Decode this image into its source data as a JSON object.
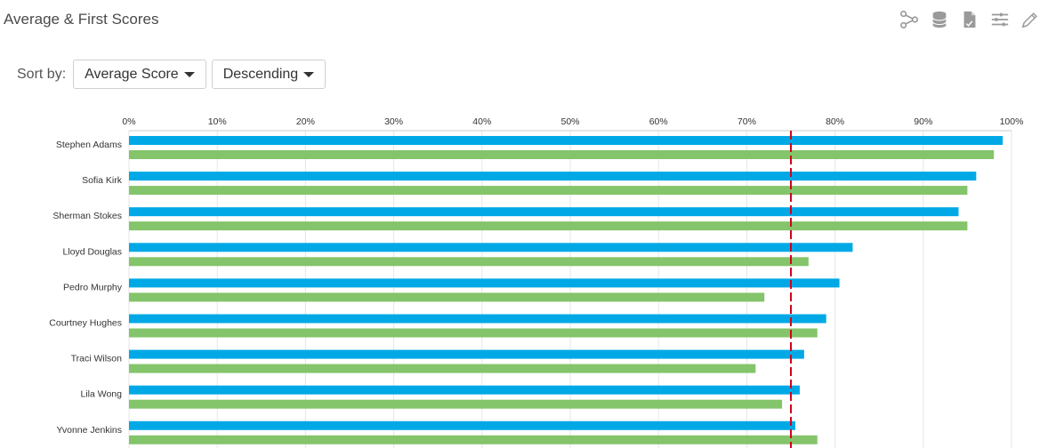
{
  "header": {
    "title": "Average & First Scores"
  },
  "toolbar": {
    "icons": [
      "share-icon",
      "database-icon",
      "document-icon",
      "filter-list-icon",
      "pencil-icon"
    ]
  },
  "sort": {
    "label": "Sort by:",
    "field_value": "Average Score",
    "order_value": "Descending"
  },
  "colors": {
    "average": "#00a9e6",
    "first": "#84c46a",
    "target_line": "#d0021b",
    "grid": "#e6e6e6"
  },
  "chart_data": {
    "type": "bar",
    "orientation": "horizontal",
    "categories": [
      "Stephen Adams",
      "Sofia Kirk",
      "Sherman Stokes",
      "Lloyd Douglas",
      "Pedro Murphy",
      "Courtney Hughes",
      "Traci Wilson",
      "Lila Wong",
      "Yvonne Jenkins"
    ],
    "series": [
      {
        "values": [
          99,
          96,
          94,
          82,
          80.5,
          79,
          76.5,
          76,
          75.5
        ]
      },
      {
        "values": [
          98,
          95,
          95,
          77,
          72,
          78,
          71,
          74,
          78
        ]
      }
    ],
    "reference_line": 75,
    "xlim": [
      0,
      100
    ],
    "x_ticks": [
      "0%",
      "10%",
      "20%",
      "30%",
      "40%",
      "50%",
      "60%",
      "70%",
      "80%",
      "90%",
      "100%"
    ],
    "x_axis_position": "top",
    "grid": true,
    "legend": "none"
  }
}
